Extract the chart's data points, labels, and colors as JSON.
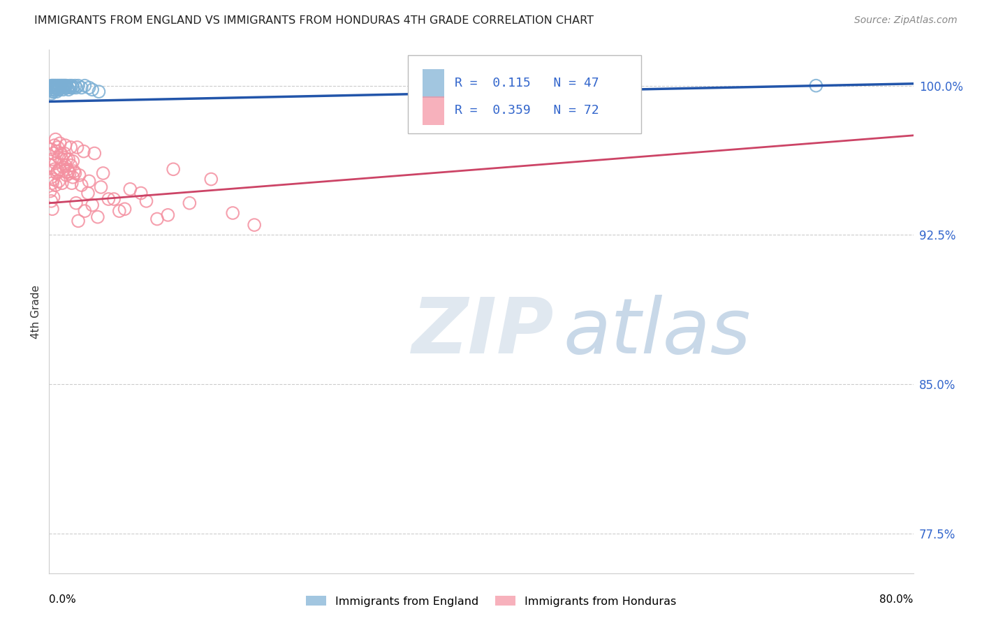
{
  "title": "IMMIGRANTS FROM ENGLAND VS IMMIGRANTS FROM HONDURAS 4TH GRADE CORRELATION CHART",
  "source": "Source: ZipAtlas.com",
  "ylabel": "4th Grade",
  "xmin": 0.0,
  "xmax": 0.8,
  "ymin": 0.755,
  "ymax": 1.018,
  "england_color": "#7BAFD4",
  "honduras_color": "#F490A0",
  "england_line_color": "#2255AA",
  "honduras_line_color": "#CC4466",
  "england_R": 0.115,
  "england_N": 47,
  "honduras_R": 0.359,
  "honduras_N": 72,
  "england_trend_x": [
    0.0,
    0.8
  ],
  "england_trend_y": [
    0.992,
    1.001
  ],
  "honduras_trend_x": [
    0.0,
    0.8
  ],
  "honduras_trend_y": [
    0.941,
    0.975
  ],
  "ytick_vals": [
    0.775,
    0.85,
    0.925,
    1.0
  ],
  "ytick_labels": [
    "77.5%",
    "85.0%",
    "92.5%",
    "100.0%"
  ],
  "england_scatter_x": [
    0.001,
    0.002,
    0.002,
    0.002,
    0.003,
    0.003,
    0.003,
    0.004,
    0.004,
    0.004,
    0.005,
    0.005,
    0.006,
    0.006,
    0.007,
    0.007,
    0.007,
    0.008,
    0.008,
    0.009,
    0.009,
    0.01,
    0.01,
    0.011,
    0.012,
    0.012,
    0.013,
    0.013,
    0.014,
    0.015,
    0.015,
    0.016,
    0.017,
    0.018,
    0.019,
    0.02,
    0.021,
    0.022,
    0.024,
    0.025,
    0.027,
    0.03,
    0.033,
    0.037,
    0.04,
    0.046,
    0.71
  ],
  "england_scatter_y": [
    0.999,
    1.0,
    0.998,
    0.996,
    1.0,
    0.998,
    0.997,
    1.0,
    0.999,
    0.997,
    1.0,
    0.998,
    1.0,
    0.999,
    1.0,
    0.999,
    0.997,
    1.0,
    0.998,
    1.0,
    0.998,
    1.0,
    0.999,
    1.0,
    1.0,
    0.999,
    1.0,
    0.998,
    1.0,
    1.0,
    0.999,
    1.0,
    0.999,
    0.998,
    1.0,
    0.999,
    1.0,
    0.999,
    1.0,
    0.999,
    1.0,
    0.999,
    1.0,
    0.999,
    0.998,
    0.997,
    1.0
  ],
  "honduras_scatter_x": [
    0.001,
    0.001,
    0.002,
    0.002,
    0.002,
    0.003,
    0.003,
    0.003,
    0.004,
    0.004,
    0.004,
    0.005,
    0.005,
    0.006,
    0.006,
    0.006,
    0.007,
    0.007,
    0.008,
    0.008,
    0.009,
    0.009,
    0.01,
    0.01,
    0.011,
    0.012,
    0.012,
    0.013,
    0.014,
    0.015,
    0.016,
    0.017,
    0.018,
    0.019,
    0.02,
    0.021,
    0.022,
    0.023,
    0.025,
    0.027,
    0.03,
    0.033,
    0.036,
    0.04,
    0.045,
    0.05,
    0.06,
    0.07,
    0.085,
    0.1,
    0.115,
    0.13,
    0.15,
    0.17,
    0.19,
    0.015,
    0.016,
    0.018,
    0.02,
    0.022,
    0.024,
    0.026,
    0.028,
    0.032,
    0.037,
    0.042,
    0.048,
    0.055,
    0.065,
    0.075,
    0.09,
    0.11
  ],
  "honduras_scatter_y": [
    0.96,
    0.947,
    0.968,
    0.954,
    0.942,
    0.963,
    0.951,
    0.938,
    0.966,
    0.953,
    0.944,
    0.97,
    0.958,
    0.973,
    0.961,
    0.95,
    0.967,
    0.956,
    0.969,
    0.957,
    0.964,
    0.952,
    0.971,
    0.958,
    0.966,
    0.963,
    0.951,
    0.959,
    0.966,
    0.96,
    0.955,
    0.958,
    0.963,
    0.956,
    0.96,
    0.951,
    0.954,
    0.957,
    0.941,
    0.932,
    0.95,
    0.937,
    0.946,
    0.94,
    0.934,
    0.956,
    0.943,
    0.938,
    0.946,
    0.933,
    0.958,
    0.941,
    0.953,
    0.936,
    0.93,
    0.97,
    0.963,
    0.957,
    0.969,
    0.962,
    0.956,
    0.969,
    0.955,
    0.967,
    0.952,
    0.966,
    0.949,
    0.943,
    0.937,
    0.948,
    0.942,
    0.935
  ]
}
